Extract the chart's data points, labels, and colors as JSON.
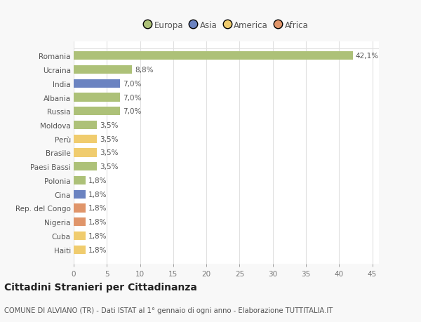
{
  "categories": [
    "Romania",
    "Ucraina",
    "India",
    "Albania",
    "Russia",
    "Moldova",
    "Perù",
    "Brasile",
    "Paesi Bassi",
    "Polonia",
    "Cina",
    "Rep. del Congo",
    "Nigeria",
    "Cuba",
    "Haiti"
  ],
  "values": [
    42.1,
    8.8,
    7.0,
    7.0,
    7.0,
    3.5,
    3.5,
    3.5,
    3.5,
    1.8,
    1.8,
    1.8,
    1.8,
    1.8,
    1.8
  ],
  "labels": [
    "42,1%",
    "8,8%",
    "7,0%",
    "7,0%",
    "7,0%",
    "3,5%",
    "3,5%",
    "3,5%",
    "3,5%",
    "1,8%",
    "1,8%",
    "1,8%",
    "1,8%",
    "1,8%",
    "1,8%"
  ],
  "colors": [
    "#adc178",
    "#adc178",
    "#6b83c1",
    "#adc178",
    "#adc178",
    "#adc178",
    "#f0cc6e",
    "#f0cc6e",
    "#adc178",
    "#adc178",
    "#6b83c1",
    "#e0956a",
    "#e0956a",
    "#f0cc6e",
    "#f0cc6e"
  ],
  "legend_labels": [
    "Europa",
    "Asia",
    "America",
    "Africa"
  ],
  "legend_colors": [
    "#adc178",
    "#6b83c1",
    "#f0cc6e",
    "#e0956a"
  ],
  "xlim": [
    0,
    46
  ],
  "xticks": [
    0,
    5,
    10,
    15,
    20,
    25,
    30,
    35,
    40,
    45
  ],
  "title": "Cittadini Stranieri per Cittadinanza",
  "subtitle": "COMUNE DI ALVIANO (TR) - Dati ISTAT al 1° gennaio di ogni anno - Elaborazione TUTTITALIA.IT",
  "bg_color": "#f8f8f8",
  "plot_bg_color": "#ffffff",
  "grid_color": "#e0e0e0",
  "bar_height": 0.62,
  "label_fontsize": 7.5,
  "tick_fontsize": 7.5,
  "title_fontsize": 10,
  "subtitle_fontsize": 7.2
}
